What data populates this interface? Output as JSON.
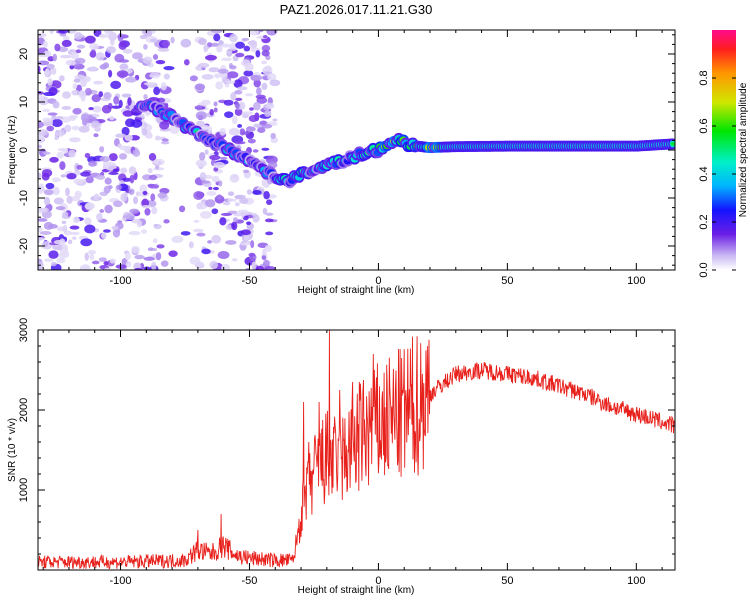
{
  "title": "PAZ1.2026.017.11.21.G30",
  "chart_data": [
    {
      "type": "heatmap",
      "xlabel": "Height of straight line (km)",
      "ylabel": "Frequency (Hz)",
      "xlim": [
        -132,
        115
      ],
      "ylim": [
        -25,
        25
      ],
      "xticks": [
        -100,
        -50,
        0,
        50,
        100
      ],
      "xtick_labels": [
        "-100",
        "-50",
        "0",
        "50",
        "100"
      ],
      "yticks": [
        -20,
        -10,
        0,
        10,
        20
      ],
      "ytick_labels": [
        "-20",
        "-10",
        "0",
        "10",
        "20"
      ],
      "ridge": {
        "x": [
          -90,
          -80,
          -72,
          -65,
          -58,
          -50,
          -45,
          -40,
          -35,
          -30,
          -25,
          -20,
          -15,
          -10,
          -5,
          0,
          5,
          8,
          12,
          20,
          30,
          50,
          80,
          100,
          115
        ],
        "y": [
          9.5,
          7,
          4,
          2,
          0,
          -2,
          -4,
          -5.5,
          -6.5,
          -5,
          -4.5,
          -3,
          -2.5,
          -1.5,
          -0.5,
          0,
          1.5,
          2,
          1,
          0.5,
          0.7,
          0.8,
          0.8,
          0.8,
          1.3
        ]
      },
      "colorbar": {
        "label": "Normalized spectral amplitude",
        "range": [
          0,
          1
        ],
        "ticks": [
          0.0,
          0.2,
          0.4,
          0.6,
          0.8
        ],
        "tick_labels": [
          "0.0",
          "0.2",
          "0.4",
          "0.6",
          "0.8"
        ]
      }
    },
    {
      "type": "line",
      "color": "#e8201b",
      "xlabel": "Height of straight line (km)",
      "ylabel": "SNR (10 * v/v)",
      "xlim": [
        -132,
        115
      ],
      "ylim": [
        0,
        3000
      ],
      "xticks": [
        -100,
        -50,
        0,
        50,
        100
      ],
      "xtick_labels": [
        "-100",
        "-50",
        "0",
        "50",
        "100"
      ],
      "yticks": [
        1000,
        2000,
        3000
      ],
      "ytick_labels": [
        "1000",
        "2000",
        "3000"
      ],
      "trend": {
        "x": [
          -132,
          -100,
          -75,
          -70,
          -65,
          -60,
          -55,
          -50,
          -40,
          -33,
          -30,
          -25,
          -20,
          -15,
          -10,
          -5,
          0,
          10,
          20,
          30,
          40,
          50,
          60,
          70,
          80,
          90,
          100,
          115
        ],
        "y": [
          100,
          100,
          120,
          250,
          200,
          300,
          180,
          150,
          120,
          120,
          700,
          1200,
          1400,
          1300,
          1600,
          1700,
          1800,
          1950,
          2200,
          2450,
          2500,
          2450,
          2400,
          2300,
          2200,
          2050,
          1950,
          1800
        ]
      },
      "spikes": {
        "x": [
          -70,
          -61,
          -29,
          -27,
          -23,
          -19,
          -15,
          -10,
          -2,
          9
        ],
        "y": [
          500,
          700,
          2100,
          1600,
          2100,
          3000,
          2250,
          2350,
          2700,
          2650
        ]
      }
    }
  ]
}
